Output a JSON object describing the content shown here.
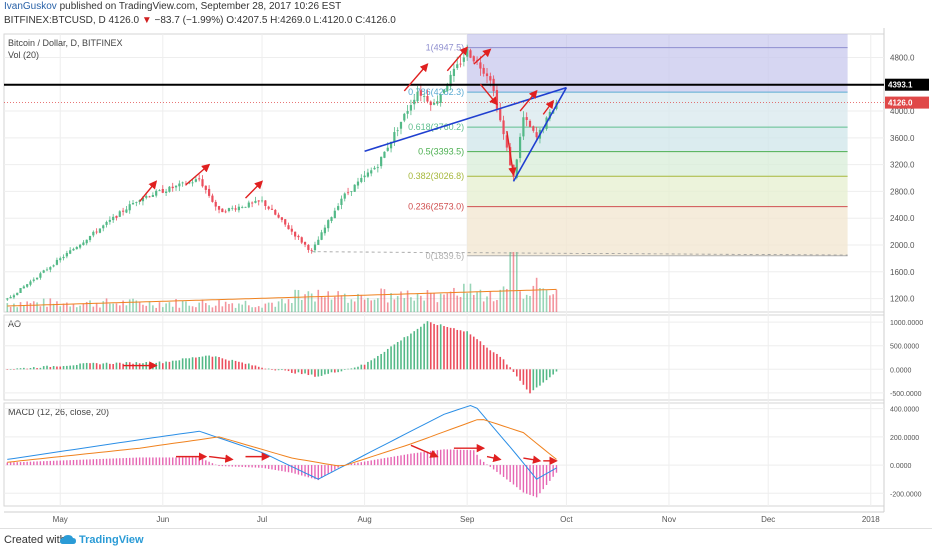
{
  "header": {
    "author": "IvanGuskov",
    "published": "published on TradingView.com, September 28, 2017 10:26 EST",
    "symbol": "BITFINEX:BTCUSD, D",
    "last": "4126.0",
    "change_arrow": "▼",
    "change": "−83.7 (−1.99%)",
    "ohlc": "O:4207.5 H:4269.0 L:4120.0 C:4126.0"
  },
  "footer": {
    "created_with": "Created with",
    "brand": "TradingView"
  },
  "chart_data": [
    {
      "type": "candlestick",
      "title": "Bitcoin / Dollar, D, BITFINEX",
      "subtitle": "Vol (20)",
      "y_ticks": [
        1200,
        1600,
        2000,
        2400,
        2800,
        3200,
        3600,
        4000,
        4800
      ],
      "ylim": [
        1000,
        5150
      ],
      "x_ticks": [
        "May",
        "Jun",
        "Jul",
        "Aug",
        "Sep",
        "Oct",
        "Nov",
        "Dec",
        "2018"
      ],
      "x_tick_dates": [
        "2017-05-01",
        "2017-06-01",
        "2017-07-01",
        "2017-08-01",
        "2017-09-01",
        "2017-10-01",
        "2017-11-01",
        "2017-12-01",
        "2018-01-01"
      ],
      "x_range": [
        "2017-04-14",
        "2018-01-05"
      ],
      "price_labels": [
        {
          "value": 4393.1,
          "text": "4393.1",
          "color": "#000000"
        },
        {
          "value": 4126.0,
          "text": "4126.0",
          "color": "#e04848"
        }
      ],
      "key_points": [
        {
          "date": "2017-04-15",
          "price": 1190
        },
        {
          "date": "2017-05-25",
          "price": 2700
        },
        {
          "date": "2017-06-12",
          "price": 2980
        },
        {
          "date": "2017-06-18",
          "price": 2500
        },
        {
          "date": "2017-07-01",
          "price": 2650
        },
        {
          "date": "2017-07-16",
          "price": 1900
        },
        {
          "date": "2017-07-25",
          "price": 2700
        },
        {
          "date": "2017-08-05",
          "price": 3200
        },
        {
          "date": "2017-08-17",
          "price": 4300
        },
        {
          "date": "2017-08-22",
          "price": 4100
        },
        {
          "date": "2017-09-01",
          "price": 4900
        },
        {
          "date": "2017-09-08",
          "price": 4500
        },
        {
          "date": "2017-09-15",
          "price": 3000
        },
        {
          "date": "2017-09-18",
          "price": 3900
        },
        {
          "date": "2017-09-22",
          "price": 3600
        },
        {
          "date": "2017-09-28",
          "price": 4126
        }
      ],
      "fibonacci": {
        "range_dates": [
          "2017-09-01",
          "2017-12-25"
        ],
        "levels": [
          {
            "ratio": 1,
            "label": "1(4947.5)",
            "value": 4947.5,
            "color": "#8f8fcf"
          },
          {
            "ratio": 0.786,
            "label": "0.786(4282.3)",
            "value": 4282.3,
            "color": "#5aaad2"
          },
          {
            "ratio": 0.618,
            "label": "0.618(3760.2)",
            "value": 3760.2,
            "color": "#5fbf8f"
          },
          {
            "ratio": 0.5,
            "label": "0.5(3393.5)",
            "value": 3393.5,
            "color": "#4caf50"
          },
          {
            "ratio": 0.382,
            "label": "0.382(3026.8)",
            "value": 3026.8,
            "color": "#a6b83c"
          },
          {
            "ratio": 0.236,
            "label": "0.236(2573.0)",
            "value": 2573.0,
            "color": "#d05050"
          },
          {
            "ratio": 0,
            "label": "0(1839.6)",
            "value": 1839.6,
            "color": "#b0b0b0"
          }
        ]
      },
      "trendlines": [
        {
          "from": [
            "2017-07-16",
            1900
          ],
          "to": [
            "2017-12-25",
            1850
          ],
          "style": "dashed",
          "color": "#999999"
        },
        {
          "from": [
            "2017-08-01",
            3400
          ],
          "to": [
            "2017-10-01",
            4350
          ],
          "style": "solid",
          "color": "#1f3fd0"
        },
        {
          "from": [
            "2017-09-15",
            2950
          ],
          "to": [
            "2017-10-01",
            4350
          ],
          "style": "solid",
          "color": "#1f3fd0"
        }
      ],
      "horizontal_line": {
        "value": 4393.1,
        "color": "#000000"
      }
    },
    {
      "type": "bar",
      "title": "AO",
      "y_ticks": [
        1000,
        500,
        0,
        -500
      ],
      "y_tick_labels": [
        "1000.0000",
        "500.0000",
        "0.0000",
        "-500.0000"
      ],
      "ylim": [
        -650,
        1150
      ],
      "key_points": [
        {
          "date": "2017-04-15",
          "value": 0
        },
        {
          "date": "2017-05-10",
          "value": 120
        },
        {
          "date": "2017-06-01",
          "value": 150
        },
        {
          "date": "2017-06-15",
          "value": 300
        },
        {
          "date": "2017-07-01",
          "value": 40
        },
        {
          "date": "2017-07-18",
          "value": -150
        },
        {
          "date": "2017-08-01",
          "value": 100
        },
        {
          "date": "2017-08-20",
          "value": 1000
        },
        {
          "date": "2017-09-01",
          "value": 800
        },
        {
          "date": "2017-09-12",
          "value": 200
        },
        {
          "date": "2017-09-20",
          "value": -500
        },
        {
          "date": "2017-09-28",
          "value": -50
        }
      ]
    },
    {
      "type": "line",
      "title": "MACD (12, 26, close, 20)",
      "y_ticks": [
        400,
        200,
        0,
        -200
      ],
      "y_tick_labels": [
        "400.0000",
        "200.0000",
        "0.0000",
        "-200.0000"
      ],
      "ylim": [
        -290,
        440
      ],
      "series": [
        {
          "color": "#2a8ee6",
          "values": [
            {
              "date": "2017-04-15",
              "value": 40
            },
            {
              "date": "2017-05-25",
              "value": 180
            },
            {
              "date": "2017-06-12",
              "value": 240
            },
            {
              "date": "2017-07-01",
              "value": 90
            },
            {
              "date": "2017-07-18",
              "value": -100
            },
            {
              "date": "2017-08-05",
              "value": 120
            },
            {
              "date": "2017-08-25",
              "value": 360
            },
            {
              "date": "2017-09-03",
              "value": 430
            },
            {
              "date": "2017-09-15",
              "value": 100
            },
            {
              "date": "2017-09-22",
              "value": -100
            },
            {
              "date": "2017-09-28",
              "value": -20
            }
          ]
        },
        {
          "color": "#f0821e",
          "values": [
            {
              "date": "2017-04-15",
              "value": 20
            },
            {
              "date": "2017-05-25",
              "value": 120
            },
            {
              "date": "2017-06-18",
              "value": 200
            },
            {
              "date": "2017-07-10",
              "value": 50
            },
            {
              "date": "2017-07-25",
              "value": -10
            },
            {
              "date": "2017-08-15",
              "value": 150
            },
            {
              "date": "2017-09-05",
              "value": 330
            },
            {
              "date": "2017-09-18",
              "value": 230
            },
            {
              "date": "2017-09-28",
              "value": 40
            }
          ]
        }
      ],
      "histogram_color_pos": "#e040a0",
      "histogram_color_neg": "#e040a0"
    }
  ],
  "annotation_arrows": [
    {
      "pane": 0,
      "from": [
        "2017-05-25",
        2650
      ],
      "to": [
        "2017-05-30",
        2950
      ],
      "color": "#e02020"
    },
    {
      "pane": 0,
      "from": [
        "2017-06-08",
        2900
      ],
      "to": [
        "2017-06-15",
        3200
      ],
      "color": "#e02020"
    },
    {
      "pane": 0,
      "from": [
        "2017-06-26",
        2700
      ],
      "to": [
        "2017-07-01",
        2950
      ],
      "color": "#e02020"
    },
    {
      "pane": 0,
      "from": [
        "2017-08-13",
        4300
      ],
      "to": [
        "2017-08-20",
        4700
      ],
      "color": "#e02020"
    },
    {
      "pane": 0,
      "from": [
        "2017-08-26",
        4600
      ],
      "to": [
        "2017-09-01",
        4950
      ],
      "color": "#e02020"
    },
    {
      "pane": 0,
      "from": [
        "2017-09-03",
        4700
      ],
      "to": [
        "2017-09-08",
        4920
      ],
      "color": "#e02020"
    },
    {
      "pane": 0,
      "from": [
        "2017-09-05",
        4400
      ],
      "to": [
        "2017-09-10",
        4100
      ],
      "color": "#e02020"
    },
    {
      "pane": 0,
      "from": [
        "2017-09-13",
        3700
      ],
      "to": [
        "2017-09-15",
        3050
      ],
      "color": "#e02020"
    },
    {
      "pane": 0,
      "from": [
        "2017-09-17",
        4000
      ],
      "to": [
        "2017-09-22",
        4300
      ],
      "color": "#e02020"
    },
    {
      "pane": 0,
      "from": [
        "2017-09-24",
        3950
      ],
      "to": [
        "2017-09-27",
        4150
      ],
      "color": "#e02020"
    },
    {
      "pane": 1,
      "from": [
        "2017-05-20",
        80
      ],
      "to": [
        "2017-05-30",
        80
      ],
      "color": "#e02020"
    },
    {
      "pane": 2,
      "from": [
        "2017-06-05",
        60
      ],
      "to": [
        "2017-06-14",
        60
      ],
      "color": "#e02020"
    },
    {
      "pane": 2,
      "from": [
        "2017-06-15",
        60
      ],
      "to": [
        "2017-06-22",
        40
      ],
      "color": "#e02020"
    },
    {
      "pane": 2,
      "from": [
        "2017-06-26",
        60
      ],
      "to": [
        "2017-07-03",
        60
      ],
      "color": "#e02020"
    },
    {
      "pane": 2,
      "from": [
        "2017-08-15",
        140
      ],
      "to": [
        "2017-08-23",
        60
      ],
      "color": "#e02020"
    },
    {
      "pane": 2,
      "from": [
        "2017-08-28",
        120
      ],
      "to": [
        "2017-09-06",
        120
      ],
      "color": "#e02020"
    },
    {
      "pane": 2,
      "from": [
        "2017-09-07",
        60
      ],
      "to": [
        "2017-09-11",
        40
      ],
      "color": "#e02020"
    },
    {
      "pane": 2,
      "from": [
        "2017-09-18",
        50
      ],
      "to": [
        "2017-09-23",
        30
      ],
      "color": "#e02020"
    },
    {
      "pane": 2,
      "from": [
        "2017-09-24",
        30
      ],
      "to": [
        "2017-09-28",
        30
      ],
      "color": "#e02020"
    }
  ],
  "colors": {
    "up": "#53b987",
    "down": "#eb4d5c",
    "volume_ma": "#f0821e",
    "grid": "#eeeeee"
  }
}
